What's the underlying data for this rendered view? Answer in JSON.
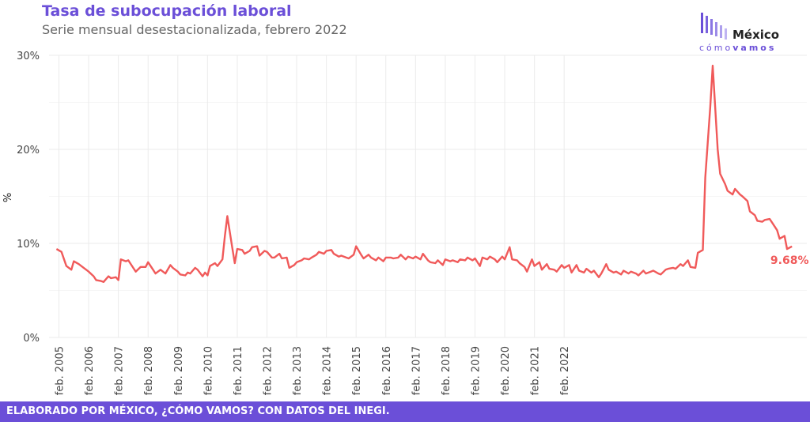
{
  "header": {
    "title": "Tasa de subocupación laboral",
    "subtitle": "Serie mensual desestacionalizada, febrero 2022"
  },
  "logo": {
    "name": "México",
    "tag_light": "cómo",
    "tag_bold": "vamos",
    "color": "#6b4fd8"
  },
  "footer": {
    "text": "ELABORADO POR MÉXICO, ¿CÓMO VAMOS? CON DATOS DEL INEGI."
  },
  "colors": {
    "line": "#f05a5a",
    "grid": "#ebebeb",
    "text": "#444444",
    "accent": "#6b4fd8"
  },
  "chart_data": {
    "type": "line",
    "title": "Tasa de subocupación laboral",
    "subtitle": "Serie mensual desestacionalizada, febrero 2022",
    "ylabel": "%",
    "ylim": [
      0,
      30
    ],
    "yticks": [
      0,
      10,
      20,
      30
    ],
    "ytick_labels": [
      "0%",
      "10%",
      "20%",
      "30%"
    ],
    "xticks": [
      "2005-02",
      "2006-02",
      "2007-02",
      "2008-02",
      "2009-02",
      "2010-02",
      "2011-02",
      "2012-02",
      "2013-02",
      "2014-02",
      "2015-02",
      "2016-02",
      "2017-02",
      "2018-02",
      "2019-02",
      "2020-02",
      "2021-02",
      "2022-02"
    ],
    "xtick_labels": [
      "feb. 2005",
      "feb. 2006",
      "feb. 2007",
      "feb. 2008",
      "feb. 2009",
      "feb. 2010",
      "feb. 2011",
      "feb. 2012",
      "feb. 2013",
      "feb. 2014",
      "feb. 2015",
      "feb. 2016",
      "feb. 2017",
      "feb. 2018",
      "feb. 2019",
      "feb. 2020",
      "feb. 2021",
      "feb. 2022"
    ],
    "grid": true,
    "last_label": "9.68%",
    "series": [
      {
        "points": [
          [
            "2005-01",
            9.4
          ],
          [
            "2005-03",
            9.1
          ],
          [
            "2005-05",
            7.6
          ],
          [
            "2005-07",
            7.2
          ],
          [
            "2005-08",
            8.1
          ],
          [
            "2005-10",
            7.8
          ],
          [
            "2005-12",
            7.4
          ],
          [
            "2006-02",
            7.0
          ],
          [
            "2006-04",
            6.5
          ],
          [
            "2006-05",
            6.1
          ],
          [
            "2006-07",
            6.0
          ],
          [
            "2006-08",
            5.9
          ],
          [
            "2006-10",
            6.5
          ],
          [
            "2006-11",
            6.3
          ],
          [
            "2007-01",
            6.4
          ],
          [
            "2007-02",
            6.1
          ],
          [
            "2007-03",
            8.3
          ],
          [
            "2007-05",
            8.1
          ],
          [
            "2007-06",
            8.2
          ],
          [
            "2007-08",
            7.4
          ],
          [
            "2007-09",
            7.0
          ],
          [
            "2007-11",
            7.5
          ],
          [
            "2008-01",
            7.5
          ],
          [
            "2008-02",
            8.0
          ],
          [
            "2008-04",
            7.2
          ],
          [
            "2008-05",
            6.8
          ],
          [
            "2008-07",
            7.2
          ],
          [
            "2008-08",
            7.0
          ],
          [
            "2008-09",
            6.8
          ],
          [
            "2008-11",
            7.7
          ],
          [
            "2008-12",
            7.4
          ],
          [
            "2009-02",
            7.0
          ],
          [
            "2009-03",
            6.7
          ],
          [
            "2009-05",
            6.6
          ],
          [
            "2009-06",
            6.9
          ],
          [
            "2009-07",
            6.8
          ],
          [
            "2009-09",
            7.4
          ],
          [
            "2009-10",
            7.2
          ],
          [
            "2009-12",
            6.5
          ],
          [
            "2010-01",
            6.9
          ],
          [
            "2010-02",
            6.6
          ],
          [
            "2010-03",
            7.6
          ],
          [
            "2010-05",
            7.9
          ],
          [
            "2010-06",
            7.6
          ],
          [
            "2010-08",
            8.3
          ],
          [
            "2010-09",
            10.8
          ],
          [
            "2010-10",
            12.9
          ],
          [
            "2010-12",
            9.5
          ],
          [
            "2011-01",
            7.9
          ],
          [
            "2011-02",
            9.4
          ],
          [
            "2011-04",
            9.3
          ],
          [
            "2011-05",
            8.9
          ],
          [
            "2011-07",
            9.2
          ],
          [
            "2011-08",
            9.6
          ],
          [
            "2011-10",
            9.7
          ],
          [
            "2011-11",
            8.7
          ],
          [
            "2012-01",
            9.2
          ],
          [
            "2012-02",
            9.1
          ],
          [
            "2012-04",
            8.5
          ],
          [
            "2012-05",
            8.5
          ],
          [
            "2012-07",
            8.9
          ],
          [
            "2012-08",
            8.4
          ],
          [
            "2012-10",
            8.5
          ],
          [
            "2012-11",
            7.4
          ],
          [
            "2013-01",
            7.7
          ],
          [
            "2013-02",
            8.0
          ],
          [
            "2013-04",
            8.2
          ],
          [
            "2013-05",
            8.4
          ],
          [
            "2013-07",
            8.3
          ],
          [
            "2013-08",
            8.5
          ],
          [
            "2013-10",
            8.8
          ],
          [
            "2013-11",
            9.1
          ],
          [
            "2014-01",
            8.9
          ],
          [
            "2014-02",
            9.2
          ],
          [
            "2014-04",
            9.3
          ],
          [
            "2014-05",
            8.9
          ],
          [
            "2014-07",
            8.6
          ],
          [
            "2014-08",
            8.7
          ],
          [
            "2014-10",
            8.5
          ],
          [
            "2014-11",
            8.4
          ],
          [
            "2015-01",
            8.8
          ],
          [
            "2015-02",
            9.7
          ],
          [
            "2015-04",
            8.8
          ],
          [
            "2015-05",
            8.4
          ],
          [
            "2015-07",
            8.8
          ],
          [
            "2015-08",
            8.5
          ],
          [
            "2015-10",
            8.2
          ],
          [
            "2015-11",
            8.5
          ],
          [
            "2016-01",
            8.1
          ],
          [
            "2016-02",
            8.5
          ],
          [
            "2016-04",
            8.5
          ],
          [
            "2016-05",
            8.4
          ],
          [
            "2016-07",
            8.5
          ],
          [
            "2016-08",
            8.8
          ],
          [
            "2016-10",
            8.3
          ],
          [
            "2016-11",
            8.6
          ],
          [
            "2017-01",
            8.4
          ],
          [
            "2017-02",
            8.6
          ],
          [
            "2017-04",
            8.3
          ],
          [
            "2017-05",
            8.9
          ],
          [
            "2017-07",
            8.2
          ],
          [
            "2017-08",
            8.0
          ],
          [
            "2017-10",
            7.9
          ],
          [
            "2017-11",
            8.2
          ],
          [
            "2018-01",
            7.7
          ],
          [
            "2018-02",
            8.3
          ],
          [
            "2018-04",
            8.1
          ],
          [
            "2018-05",
            8.2
          ],
          [
            "2018-07",
            8.0
          ],
          [
            "2018-08",
            8.3
          ],
          [
            "2018-10",
            8.2
          ],
          [
            "2018-11",
            8.5
          ],
          [
            "2019-01",
            8.2
          ],
          [
            "2019-02",
            8.4
          ],
          [
            "2019-04",
            7.6
          ],
          [
            "2019-05",
            8.5
          ],
          [
            "2019-07",
            8.3
          ],
          [
            "2019-08",
            8.6
          ],
          [
            "2019-10",
            8.3
          ],
          [
            "2019-11",
            8.0
          ],
          [
            "2020-01",
            8.6
          ],
          [
            "2020-02",
            8.3
          ],
          [
            "2020-04",
            9.6
          ],
          [
            "2020-05",
            8.3
          ],
          [
            "2020-07",
            8.2
          ],
          [
            "2020-08",
            7.9
          ],
          [
            "2020-10",
            7.5
          ],
          [
            "2020-11",
            7.0
          ],
          [
            "2021-01",
            8.3
          ],
          [
            "2021-02",
            7.6
          ],
          [
            "2021-04",
            8.0
          ],
          [
            "2021-05",
            7.2
          ],
          [
            "2021-07",
            7.8
          ],
          [
            "2021-08",
            7.3
          ],
          [
            "2021-10",
            7.2
          ],
          [
            "2021-11",
            7.0
          ],
          [
            "2022-01",
            7.7
          ],
          [
            "2022-02",
            7.4
          ],
          [
            "2022-04",
            7.7
          ],
          [
            "2022-05",
            6.9
          ],
          [
            "2022-07",
            7.7
          ],
          [
            "2022-08",
            7.1
          ],
          [
            "2022-10",
            6.9
          ],
          [
            "2022-11",
            7.3
          ],
          [
            "2023-01",
            6.9
          ],
          [
            "2023-02",
            7.1
          ],
          [
            "2023-04",
            6.4
          ],
          [
            "2023-05",
            6.8
          ],
          [
            "2023-07",
            7.8
          ],
          [
            "2023-08",
            7.2
          ],
          [
            "2023-10",
            6.9
          ],
          [
            "2023-11",
            7.0
          ],
          [
            "2024-01",
            6.7
          ],
          [
            "2024-02",
            7.1
          ],
          [
            "2024-04",
            6.8
          ],
          [
            "2024-05",
            7.0
          ],
          [
            "2024-07",
            6.8
          ],
          [
            "2024-08",
            6.6
          ],
          [
            "2024-10",
            7.1
          ],
          [
            "2024-11",
            6.8
          ],
          [
            "2025-01",
            7.0
          ],
          [
            "2025-02",
            7.1
          ],
          [
            "2025-04",
            6.8
          ],
          [
            "2025-05",
            6.7
          ],
          [
            "2025-07",
            7.2
          ],
          [
            "2025-08",
            7.3
          ],
          [
            "2025-10",
            7.4
          ],
          [
            "2025-11",
            7.3
          ],
          [
            "2026-01",
            7.8
          ],
          [
            "2026-02",
            7.6
          ],
          [
            "2026-04",
            8.2
          ],
          [
            "2026-05",
            7.5
          ],
          [
            "2026-07",
            7.4
          ],
          [
            "2026-08",
            9.0
          ],
          [
            "2026-10",
            9.3
          ],
          [
            "2026-11",
            17.0
          ],
          [
            "2027-01",
            24.5
          ],
          [
            "2027-02",
            28.9
          ],
          [
            "2027-04",
            20.0
          ],
          [
            "2027-05",
            17.4
          ],
          [
            "2027-07",
            16.3
          ],
          [
            "2027-08",
            15.6
          ],
          [
            "2027-10",
            15.2
          ],
          [
            "2027-11",
            15.8
          ],
          [
            "2028-01",
            15.2
          ],
          [
            "2028-02",
            15.0
          ],
          [
            "2028-04",
            14.5
          ],
          [
            "2028-05",
            13.4
          ],
          [
            "2028-07",
            13.0
          ],
          [
            "2028-08",
            12.4
          ],
          [
            "2028-10",
            12.3
          ],
          [
            "2028-11",
            12.5
          ],
          [
            "2029-01",
            12.6
          ],
          [
            "2029-02",
            12.2
          ],
          [
            "2029-04",
            11.4
          ],
          [
            "2029-05",
            10.5
          ],
          [
            "2029-07",
            10.8
          ],
          [
            "2029-08",
            9.4
          ],
          [
            "2029-10",
            9.68
          ]
        ]
      }
    ]
  }
}
